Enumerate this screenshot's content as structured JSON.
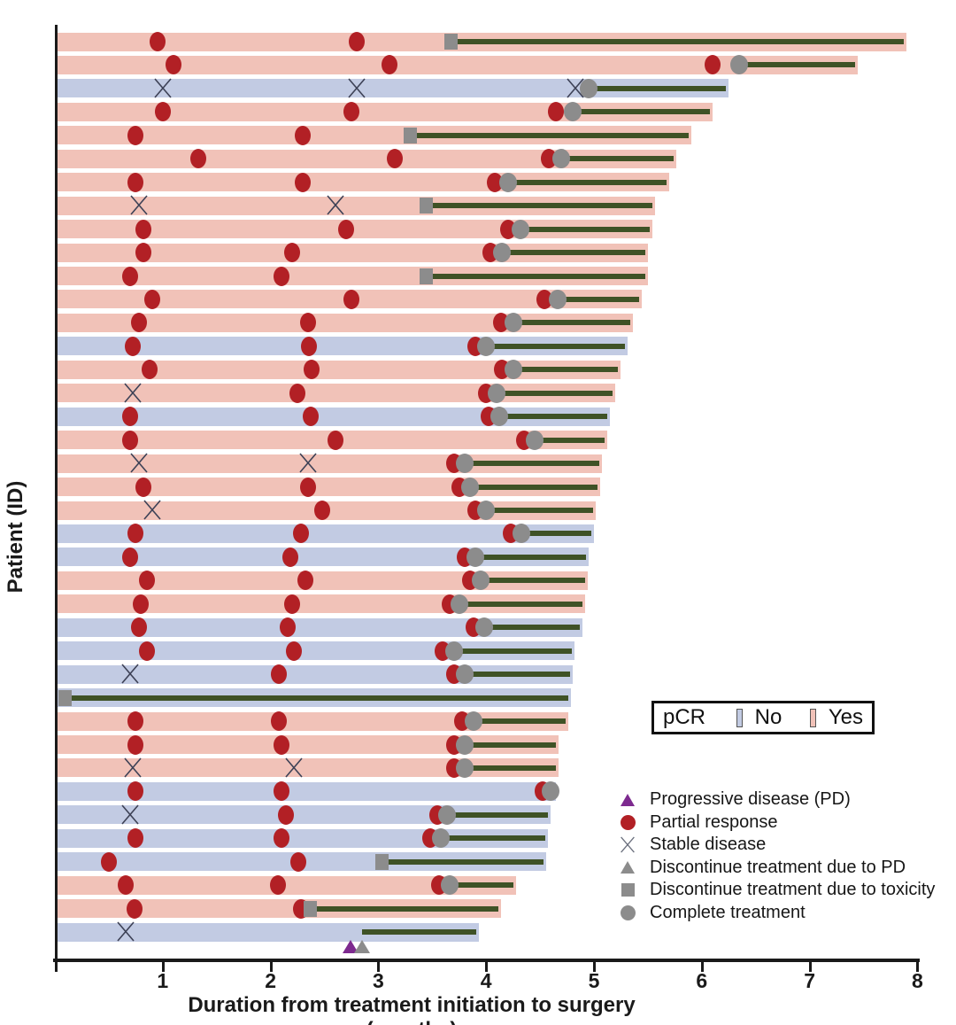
{
  "figure": {
    "x_axis_label": "Duration from treatment initiation to surgery (months)",
    "y_axis_label": "Patient (ID)",
    "x_ticks": [
      "1",
      "2",
      "3",
      "4",
      "5",
      "6",
      "7",
      "8"
    ]
  },
  "pcr_legend": {
    "title": "pCR",
    "no_label": "No",
    "yes_label": "Yes"
  },
  "marker_legend": [
    {
      "icon": "progressive-disease-icon",
      "label": "Progressive disease (PD)"
    },
    {
      "icon": "partial-response-icon",
      "label": "Partial response"
    },
    {
      "icon": "stable-disease-icon",
      "label": "Stable disease"
    },
    {
      "icon": "discontinue-pd-icon",
      "label": "Discontinue treatment due to PD"
    },
    {
      "icon": "discontinue-toxicity-icon",
      "label": "Discontinue treatment due to toxicity"
    },
    {
      "icon": "complete-treatment-icon",
      "label": "Complete treatment"
    }
  ],
  "colors": {
    "pcr_no": "#c2cbe3",
    "pcr_yes": "#f1c2b8",
    "partial_response": "#b22025",
    "progressive_disease": "#7d2a8f",
    "stable_disease": "#3d4156",
    "treatment_line": "#3f5226",
    "end_marker_gray": "#8c8c8c",
    "axis": "#1a1a1a"
  },
  "chart_data": {
    "type": "swimmer",
    "x_unit": "months",
    "x_range": [
      0,
      8
    ],
    "event_types": {
      "pr": "partial response",
      "sd": "stable disease",
      "pd": "progressive disease"
    },
    "end_marker_types": {
      "complete": "complete treatment",
      "toxicity": "discontinue due to toxicity",
      "pd": "discontinue due to PD"
    },
    "patients": [
      {
        "pcr": "Yes",
        "surgery": 7.9,
        "treatment_end": 3.68,
        "end_marker": "toxicity",
        "events": [
          {
            "t": 0.95,
            "type": "pr"
          },
          {
            "t": 2.8,
            "type": "pr"
          }
        ]
      },
      {
        "pcr": "Yes",
        "surgery": 7.45,
        "treatment_end": 6.35,
        "end_marker": "complete",
        "events": [
          {
            "t": 1.1,
            "type": "pr"
          },
          {
            "t": 3.1,
            "type": "pr"
          },
          {
            "t": 6.1,
            "type": "pr"
          }
        ]
      },
      {
        "pcr": "No",
        "surgery": 6.25,
        "treatment_end": 4.95,
        "end_marker": "complete",
        "events": [
          {
            "t": 1.0,
            "type": "sd"
          },
          {
            "t": 2.8,
            "type": "sd"
          },
          {
            "t": 4.83,
            "type": "sd"
          }
        ]
      },
      {
        "pcr": "Yes",
        "surgery": 6.1,
        "treatment_end": 4.8,
        "end_marker": "complete",
        "events": [
          {
            "t": 1.0,
            "type": "pr"
          },
          {
            "t": 2.75,
            "type": "pr"
          },
          {
            "t": 4.65,
            "type": "pr"
          }
        ]
      },
      {
        "pcr": "Yes",
        "surgery": 5.9,
        "treatment_end": 3.3,
        "end_marker": "toxicity",
        "events": [
          {
            "t": 0.75,
            "type": "pr"
          },
          {
            "t": 2.3,
            "type": "pr"
          }
        ]
      },
      {
        "pcr": "Yes",
        "surgery": 5.76,
        "treatment_end": 4.7,
        "end_marker": "complete",
        "events": [
          {
            "t": 1.33,
            "type": "pr"
          },
          {
            "t": 3.15,
            "type": "pr"
          },
          {
            "t": 4.58,
            "type": "pr"
          }
        ]
      },
      {
        "pcr": "Yes",
        "surgery": 5.7,
        "treatment_end": 4.2,
        "end_marker": "complete",
        "events": [
          {
            "t": 0.75,
            "type": "pr"
          },
          {
            "t": 2.3,
            "type": "pr"
          },
          {
            "t": 4.08,
            "type": "pr"
          }
        ]
      },
      {
        "pcr": "Yes",
        "surgery": 5.57,
        "treatment_end": 3.45,
        "end_marker": "toxicity",
        "events": [
          {
            "t": 0.78,
            "type": "sd"
          },
          {
            "t": 2.6,
            "type": "sd"
          }
        ]
      },
      {
        "pcr": "Yes",
        "surgery": 5.54,
        "treatment_end": 4.32,
        "end_marker": "complete",
        "events": [
          {
            "t": 0.82,
            "type": "pr"
          },
          {
            "t": 2.7,
            "type": "pr"
          },
          {
            "t": 4.2,
            "type": "pr"
          }
        ]
      },
      {
        "pcr": "Yes",
        "surgery": 5.5,
        "treatment_end": 4.15,
        "end_marker": "complete",
        "events": [
          {
            "t": 0.82,
            "type": "pr"
          },
          {
            "t": 2.2,
            "type": "pr"
          },
          {
            "t": 4.04,
            "type": "pr"
          }
        ]
      },
      {
        "pcr": "Yes",
        "surgery": 5.5,
        "treatment_end": 3.45,
        "end_marker": "toxicity",
        "events": [
          {
            "t": 0.7,
            "type": "pr"
          },
          {
            "t": 2.1,
            "type": "pr"
          }
        ]
      },
      {
        "pcr": "Yes",
        "surgery": 5.44,
        "treatment_end": 4.66,
        "end_marker": "complete",
        "events": [
          {
            "t": 0.9,
            "type": "pr"
          },
          {
            "t": 2.75,
            "type": "pr"
          },
          {
            "t": 4.54,
            "type": "pr"
          }
        ]
      },
      {
        "pcr": "Yes",
        "surgery": 5.36,
        "treatment_end": 4.25,
        "end_marker": "complete",
        "events": [
          {
            "t": 0.78,
            "type": "pr"
          },
          {
            "t": 2.35,
            "type": "pr"
          },
          {
            "t": 4.14,
            "type": "pr"
          }
        ]
      },
      {
        "pcr": "No",
        "surgery": 5.31,
        "treatment_end": 4.0,
        "end_marker": "complete",
        "events": [
          {
            "t": 0.72,
            "type": "pr"
          },
          {
            "t": 2.36,
            "type": "pr"
          },
          {
            "t": 3.9,
            "type": "pr"
          }
        ]
      },
      {
        "pcr": "Yes",
        "surgery": 5.25,
        "treatment_end": 4.25,
        "end_marker": "complete",
        "events": [
          {
            "t": 0.88,
            "type": "pr"
          },
          {
            "t": 2.38,
            "type": "pr"
          },
          {
            "t": 4.15,
            "type": "pr"
          }
        ]
      },
      {
        "pcr": "Yes",
        "surgery": 5.2,
        "treatment_end": 4.1,
        "end_marker": "complete",
        "events": [
          {
            "t": 0.72,
            "type": "sd"
          },
          {
            "t": 2.25,
            "type": "pr"
          },
          {
            "t": 4.0,
            "type": "pr"
          }
        ]
      },
      {
        "pcr": "No",
        "surgery": 5.15,
        "treatment_end": 4.12,
        "end_marker": "complete",
        "events": [
          {
            "t": 0.7,
            "type": "pr"
          },
          {
            "t": 2.37,
            "type": "pr"
          },
          {
            "t": 4.02,
            "type": "pr"
          }
        ]
      },
      {
        "pcr": "Yes",
        "surgery": 5.12,
        "treatment_end": 4.45,
        "end_marker": "complete",
        "events": [
          {
            "t": 0.7,
            "type": "pr"
          },
          {
            "t": 2.6,
            "type": "pr"
          },
          {
            "t": 4.35,
            "type": "pr"
          }
        ]
      },
      {
        "pcr": "Yes",
        "surgery": 5.07,
        "treatment_end": 3.8,
        "end_marker": "complete",
        "events": [
          {
            "t": 0.78,
            "type": "sd"
          },
          {
            "t": 2.35,
            "type": "sd"
          },
          {
            "t": 3.7,
            "type": "pr"
          }
        ]
      },
      {
        "pcr": "Yes",
        "surgery": 5.06,
        "treatment_end": 3.85,
        "end_marker": "complete",
        "events": [
          {
            "t": 0.82,
            "type": "pr"
          },
          {
            "t": 2.35,
            "type": "pr"
          },
          {
            "t": 3.75,
            "type": "pr"
          }
        ]
      },
      {
        "pcr": "Yes",
        "surgery": 5.02,
        "treatment_end": 4.0,
        "end_marker": "complete",
        "events": [
          {
            "t": 0.9,
            "type": "sd"
          },
          {
            "t": 2.48,
            "type": "pr"
          },
          {
            "t": 3.9,
            "type": "pr"
          }
        ]
      },
      {
        "pcr": "No",
        "surgery": 5.0,
        "treatment_end": 4.33,
        "end_marker": "complete",
        "events": [
          {
            "t": 0.75,
            "type": "pr"
          },
          {
            "t": 2.28,
            "type": "pr"
          },
          {
            "t": 4.23,
            "type": "pr"
          }
        ]
      },
      {
        "pcr": "No",
        "surgery": 4.95,
        "treatment_end": 3.9,
        "end_marker": "complete",
        "events": [
          {
            "t": 0.7,
            "type": "pr"
          },
          {
            "t": 2.18,
            "type": "pr"
          },
          {
            "t": 3.8,
            "type": "pr"
          }
        ]
      },
      {
        "pcr": "Yes",
        "surgery": 4.94,
        "treatment_end": 3.95,
        "end_marker": "complete",
        "events": [
          {
            "t": 0.85,
            "type": "pr"
          },
          {
            "t": 2.32,
            "type": "pr"
          },
          {
            "t": 3.85,
            "type": "pr"
          }
        ]
      },
      {
        "pcr": "Yes",
        "surgery": 4.92,
        "treatment_end": 3.75,
        "end_marker": "complete",
        "events": [
          {
            "t": 0.8,
            "type": "pr"
          },
          {
            "t": 2.2,
            "type": "pr"
          },
          {
            "t": 3.66,
            "type": "pr"
          }
        ]
      },
      {
        "pcr": "No",
        "surgery": 4.89,
        "treatment_end": 3.98,
        "end_marker": "complete",
        "events": [
          {
            "t": 0.78,
            "type": "pr"
          },
          {
            "t": 2.16,
            "type": "pr"
          },
          {
            "t": 3.88,
            "type": "pr"
          }
        ]
      },
      {
        "pcr": "No",
        "surgery": 4.82,
        "treatment_end": 3.7,
        "end_marker": "complete",
        "events": [
          {
            "t": 0.85,
            "type": "pr"
          },
          {
            "t": 2.22,
            "type": "pr"
          },
          {
            "t": 3.6,
            "type": "pr"
          }
        ]
      },
      {
        "pcr": "No",
        "surgery": 4.8,
        "treatment_end": 3.8,
        "end_marker": "complete",
        "events": [
          {
            "t": 0.7,
            "type": "sd"
          },
          {
            "t": 2.08,
            "type": "pr"
          },
          {
            "t": 3.7,
            "type": "pr"
          }
        ]
      },
      {
        "pcr": "No",
        "surgery": 4.79,
        "treatment_end": 0.1,
        "end_marker": "toxicity",
        "events": []
      },
      {
        "pcr": "Yes",
        "surgery": 4.76,
        "treatment_end": 3.88,
        "end_marker": "complete",
        "events": [
          {
            "t": 0.75,
            "type": "pr"
          },
          {
            "t": 2.08,
            "type": "pr"
          },
          {
            "t": 3.78,
            "type": "pr"
          }
        ]
      },
      {
        "pcr": "Yes",
        "surgery": 4.67,
        "treatment_end": 3.8,
        "end_marker": "complete",
        "events": [
          {
            "t": 0.75,
            "type": "pr"
          },
          {
            "t": 2.1,
            "type": "pr"
          },
          {
            "t": 3.7,
            "type": "pr"
          }
        ]
      },
      {
        "pcr": "Yes",
        "surgery": 4.67,
        "treatment_end": 3.8,
        "end_marker": "complete",
        "events": [
          {
            "t": 0.72,
            "type": "sd"
          },
          {
            "t": 2.22,
            "type": "sd"
          },
          {
            "t": 3.7,
            "type": "pr"
          }
        ]
      },
      {
        "pcr": "No",
        "surgery": 4.65,
        "treatment_end": 4.6,
        "end_marker": "complete",
        "events": [
          {
            "t": 0.75,
            "type": "pr"
          },
          {
            "t": 2.1,
            "type": "pr"
          },
          {
            "t": 4.52,
            "type": "pr"
          }
        ]
      },
      {
        "pcr": "No",
        "surgery": 4.6,
        "treatment_end": 3.64,
        "end_marker": "complete",
        "events": [
          {
            "t": 0.7,
            "type": "sd"
          },
          {
            "t": 2.14,
            "type": "pr"
          },
          {
            "t": 3.55,
            "type": "pr"
          }
        ]
      },
      {
        "pcr": "No",
        "surgery": 4.57,
        "treatment_end": 3.58,
        "end_marker": "complete",
        "events": [
          {
            "t": 0.75,
            "type": "pr"
          },
          {
            "t": 2.1,
            "type": "pr"
          },
          {
            "t": 3.48,
            "type": "pr"
          }
        ]
      },
      {
        "pcr": "No",
        "surgery": 4.56,
        "treatment_end": 3.04,
        "end_marker": "toxicity",
        "events": [
          {
            "t": 0.5,
            "type": "pr"
          },
          {
            "t": 2.26,
            "type": "pr"
          }
        ]
      },
      {
        "pcr": "Yes",
        "surgery": 4.28,
        "treatment_end": 3.66,
        "end_marker": "complete",
        "events": [
          {
            "t": 0.66,
            "type": "pr"
          },
          {
            "t": 2.07,
            "type": "pr"
          },
          {
            "t": 3.56,
            "type": "pr"
          }
        ]
      },
      {
        "pcr": "Yes",
        "surgery": 4.14,
        "treatment_end": 2.37,
        "end_marker": "toxicity",
        "events": [
          {
            "t": 0.74,
            "type": "pr"
          },
          {
            "t": 2.28,
            "type": "pr"
          }
        ]
      },
      {
        "pcr": "No",
        "surgery": 3.93,
        "treatment_end": 2.85,
        "end_marker": "pd",
        "events": [
          {
            "t": 0.66,
            "type": "sd"
          },
          {
            "t": 2.74,
            "type": "pd"
          }
        ]
      }
    ]
  }
}
